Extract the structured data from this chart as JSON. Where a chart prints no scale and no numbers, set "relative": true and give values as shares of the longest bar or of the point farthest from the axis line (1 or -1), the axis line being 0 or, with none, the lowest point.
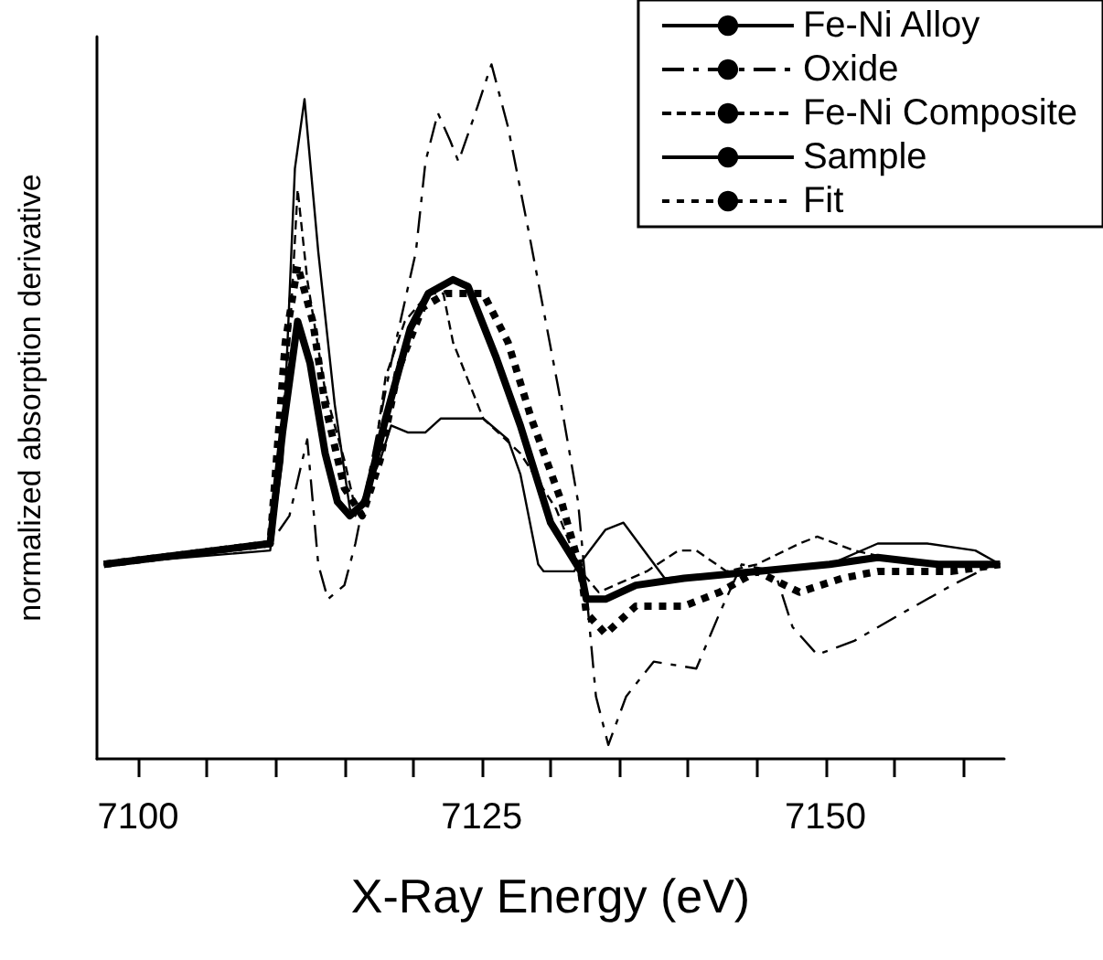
{
  "chart_data": {
    "type": "line",
    "relative": true,
    "xlabel": "X-Ray Energy (eV)",
    "ylabel": "normalized absorption derivative",
    "xlim": [
      7097,
      7163
    ],
    "xticks": [
      7100,
      {
        "value": 7105,
        "label": null
      },
      {
        "value": 7110,
        "label": null
      },
      {
        "value": 7115,
        "label": null
      },
      {
        "value": 7120,
        "label": null
      },
      7125,
      {
        "value": 7130,
        "label": null
      },
      {
        "value": 7135,
        "label": null
      },
      {
        "value": 7140,
        "label": null
      },
      {
        "value": 7145,
        "label": null
      },
      7150,
      {
        "value": 7155,
        "label": null
      },
      {
        "value": 7160,
        "label": null
      }
    ],
    "grid": false,
    "legend": "top right",
    "marker": "none",
    "series": [
      {
        "name": "Fe-Ni Alloy",
        "color": "#000000",
        "line_style": "solid",
        "x": [
          7097.5,
          7109.6,
          7110.5,
          7111.4,
          7112.1,
          7113.1,
          7114.3,
          7115.4,
          7115.8,
          7117.6,
          7118.4,
          7119.6,
          7120.9,
          7122.0,
          7125.1,
          7126.9,
          7127.8,
          7129.1,
          7129.5,
          7131.7,
          7134.0,
          7135.3,
          7138.3,
          7145.0,
          7150.3,
          7153.8,
          7157.4,
          7160.9,
          7162.7
        ],
        "values": [
          0.28,
          0.3,
          0.43,
          0.85,
          0.95,
          0.73,
          0.51,
          0.36,
          0.35,
          0.43,
          0.48,
          0.47,
          0.47,
          0.49,
          0.49,
          0.46,
          0.41,
          0.28,
          0.27,
          0.27,
          0.33,
          0.34,
          0.26,
          0.27,
          0.28,
          0.31,
          0.31,
          0.3,
          0.28
        ]
      },
      {
        "name": "Oxide",
        "color": "#000000",
        "line_style": "dashdot",
        "x": [
          7097.5,
          7109.6,
          7111.0,
          7112.3,
          7113.1,
          7113.8,
          7115.0,
          7115.8,
          7118.4,
          7120.2,
          7120.9,
          7121.8,
          7122.7,
          7123.3,
          7124.7,
          7125.7,
          7126.9,
          7128.4,
          7130.6,
          7132.0,
          7133.3,
          7134.2,
          7135.5,
          7137.5,
          7140.6,
          7142.3,
          7143.9,
          7146.3,
          7147.6,
          7149.4,
          7152.1,
          7155.6,
          7159.2,
          7162.2
        ],
        "values": [
          0.28,
          0.31,
          0.35,
          0.46,
          0.28,
          0.23,
          0.25,
          0.31,
          0.57,
          0.73,
          0.86,
          0.93,
          0.89,
          0.86,
          0.94,
          1.0,
          0.91,
          0.76,
          0.53,
          0.37,
          0.09,
          0.02,
          0.09,
          0.14,
          0.13,
          0.21,
          0.28,
          0.27,
          0.19,
          0.15,
          0.17,
          0.21,
          0.25,
          0.28
        ]
      },
      {
        "name": "Fe-Ni Composite",
        "color": "#000000",
        "line_style": "dashed",
        "x": [
          7097.5,
          7109.6,
          7111.0,
          7111.6,
          7112.3,
          7113.6,
          7115.0,
          7115.8,
          7116.7,
          7118.0,
          7119.4,
          7121.1,
          7122.2,
          7122.9,
          7125.1,
          7127.8,
          7130.4,
          7132.2,
          7133.5,
          7137.0,
          7139.3,
          7140.6,
          7142.8,
          7145.0,
          7148.1,
          7149.4,
          7152.1,
          7156.5,
          7161.8
        ],
        "values": [
          0.28,
          0.31,
          0.6,
          0.82,
          0.69,
          0.53,
          0.43,
          0.36,
          0.37,
          0.55,
          0.63,
          0.67,
          0.67,
          0.6,
          0.49,
          0.44,
          0.36,
          0.27,
          0.24,
          0.27,
          0.3,
          0.3,
          0.27,
          0.28,
          0.31,
          0.32,
          0.3,
          0.28,
          0.28
        ]
      },
      {
        "name": "Sample",
        "color": "#000000",
        "line_style": "solid",
        "x": [
          7097.5,
          7109.6,
          7110.5,
          7111.6,
          7112.5,
          7113.6,
          7114.5,
          7115.4,
          7116.5,
          7118.0,
          7119.8,
          7121.1,
          7122.9,
          7124.0,
          7126.0,
          7127.8,
          7130.0,
          7132.2,
          7132.6,
          7134.0,
          7136.2,
          7139.7,
          7145.0,
          7150.3,
          7153.8,
          7158.2,
          7162.7
        ],
        "values": [
          0.28,
          0.31,
          0.47,
          0.63,
          0.57,
          0.44,
          0.37,
          0.35,
          0.37,
          0.49,
          0.62,
          0.67,
          0.69,
          0.68,
          0.58,
          0.48,
          0.34,
          0.27,
          0.23,
          0.23,
          0.25,
          0.26,
          0.27,
          0.28,
          0.29,
          0.28,
          0.28
        ]
      },
      {
        "name": "Fit",
        "color": "#000000",
        "line_style": "dotted",
        "x": [
          7097.5,
          7109.6,
          7110.7,
          7111.6,
          7112.7,
          7113.6,
          7115.0,
          7116.3,
          7117.6,
          7118.9,
          7120.7,
          7122.4,
          7125.1,
          7126.9,
          7128.6,
          7130.8,
          7132.2,
          7132.6,
          7134.0,
          7136.2,
          7139.7,
          7142.3,
          7145.0,
          7148.1,
          7151.2,
          7153.8,
          7159.2,
          7162.7
        ],
        "values": [
          0.28,
          0.31,
          0.6,
          0.71,
          0.63,
          0.51,
          0.39,
          0.35,
          0.43,
          0.56,
          0.65,
          0.67,
          0.67,
          0.6,
          0.49,
          0.37,
          0.27,
          0.21,
          0.18,
          0.22,
          0.22,
          0.24,
          0.27,
          0.24,
          0.26,
          0.27,
          0.27,
          0.28
        ]
      }
    ]
  }
}
